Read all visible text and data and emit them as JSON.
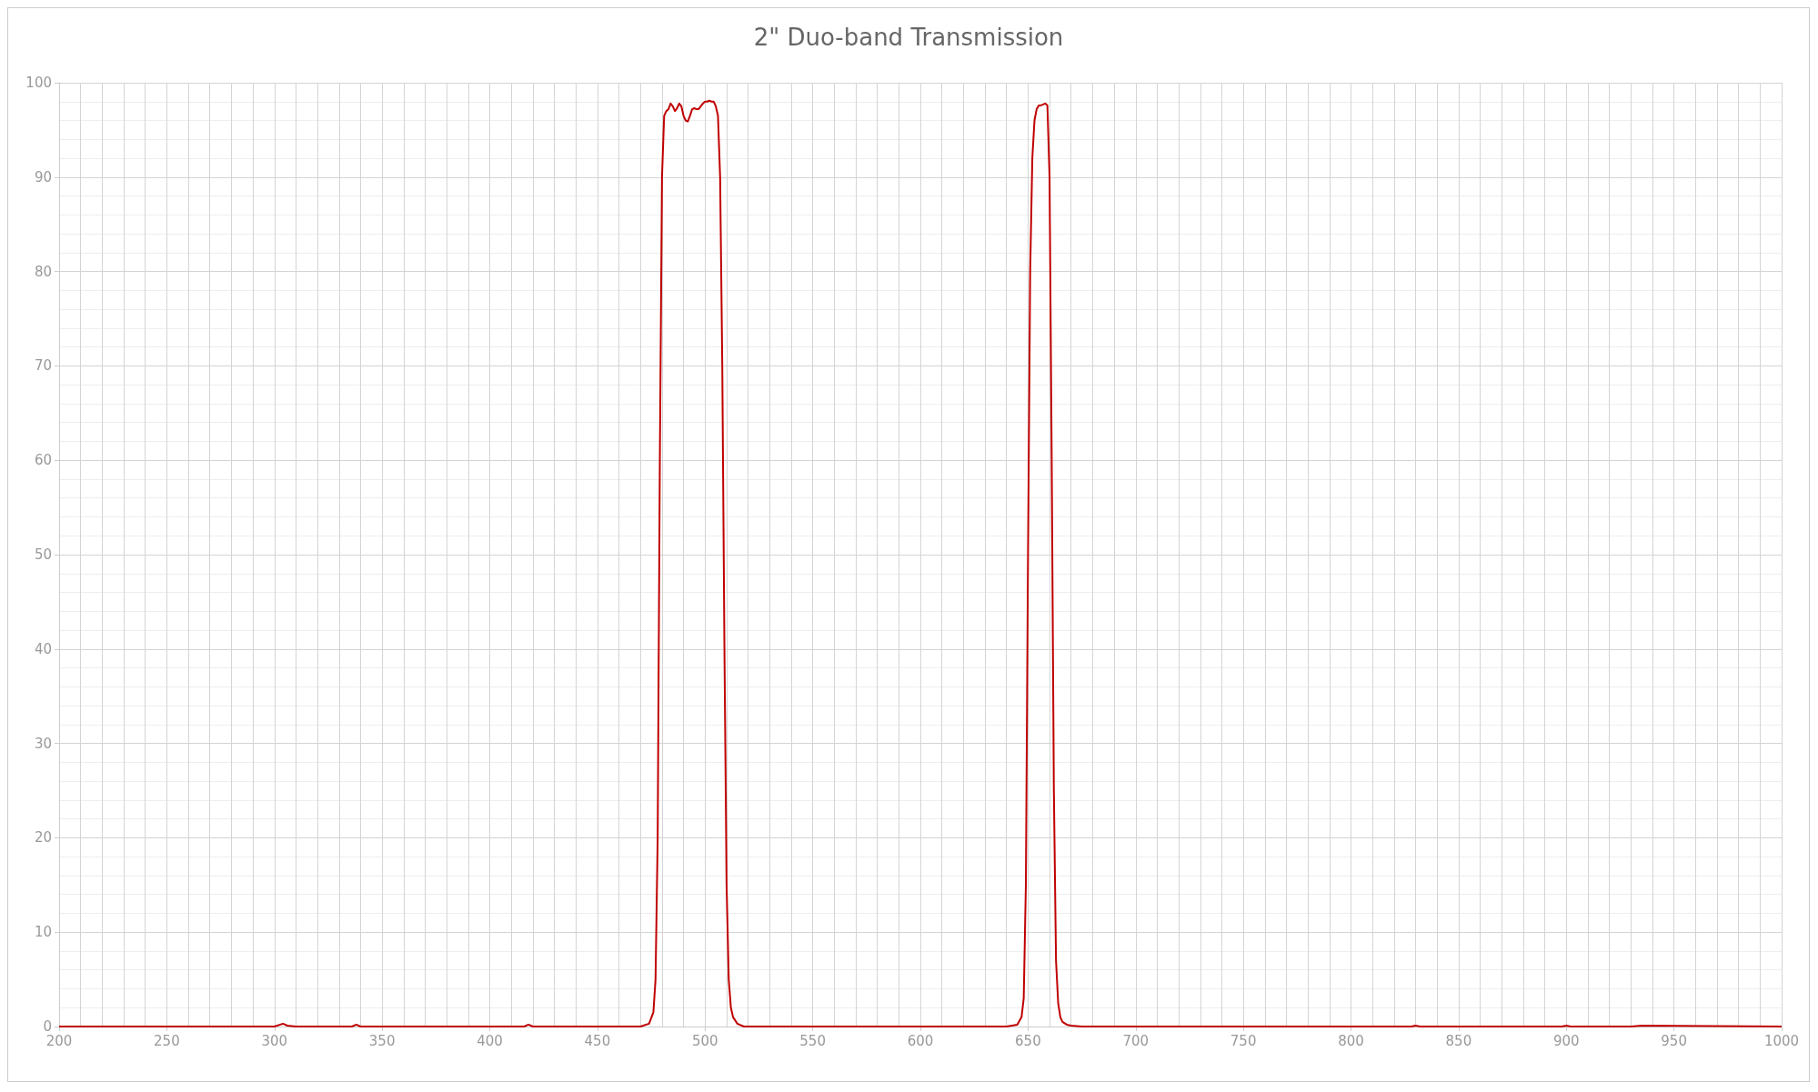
{
  "chart_data": {
    "type": "line",
    "title": "2\" Duo-band Transmission",
    "x": [
      200,
      300,
      304,
      306,
      310,
      336,
      338,
      340,
      416,
      418,
      420,
      470,
      474,
      476,
      477,
      478,
      479,
      480,
      481,
      482,
      483,
      484,
      485,
      486,
      487,
      488,
      489,
      490,
      491,
      492,
      493,
      494,
      495,
      496,
      497,
      498,
      499,
      500,
      501,
      502,
      503,
      504,
      505,
      506,
      507,
      508,
      509,
      510,
      511,
      512,
      513,
      515,
      518,
      530,
      600,
      640,
      645,
      647,
      648,
      649,
      650,
      651,
      652,
      653,
      654,
      655,
      656,
      657,
      658,
      659,
      660,
      661,
      662,
      663,
      664,
      665,
      666,
      668,
      670,
      675,
      700,
      828,
      830,
      832,
      898,
      900,
      902,
      930,
      935,
      1000
    ],
    "series": [
      {
        "color": "#c00000",
        "values": [
          0,
          0,
          0.3,
          0.1,
          0,
          0,
          0.2,
          0,
          0,
          0.2,
          0,
          0,
          0.3,
          1.5,
          5,
          20,
          60,
          90,
          96.5,
          97,
          97.2,
          97.8,
          97.5,
          97,
          97.3,
          97.8,
          97.5,
          96.5,
          96,
          95.9,
          96.5,
          97.2,
          97.3,
          97.2,
          97.2,
          97.5,
          97.8,
          98,
          98,
          98.1,
          98,
          98,
          97.5,
          96.5,
          90,
          70,
          40,
          15,
          5,
          2,
          1,
          0.3,
          0,
          0,
          0,
          0,
          0.2,
          1,
          3,
          15,
          50,
          80,
          92,
          96,
          97.2,
          97.6,
          97.6,
          97.7,
          97.8,
          97.6,
          90,
          60,
          25,
          7,
          2.5,
          1,
          0.5,
          0.2,
          0.1,
          0,
          0,
          0,
          0.1,
          0,
          0,
          0.1,
          0,
          0,
          0.1,
          0
        ]
      }
    ],
    "xlim": [
      200,
      1000
    ],
    "xticks": [
      200,
      250,
      300,
      350,
      400,
      450,
      500,
      550,
      600,
      650,
      700,
      750,
      800,
      850,
      900,
      950,
      1000
    ],
    "ylim": [
      0,
      100
    ],
    "yticks": [
      0,
      10,
      20,
      30,
      40,
      50,
      60,
      70,
      80,
      90,
      100
    ],
    "grid": true,
    "marker": "none",
    "line_style": "solid"
  }
}
